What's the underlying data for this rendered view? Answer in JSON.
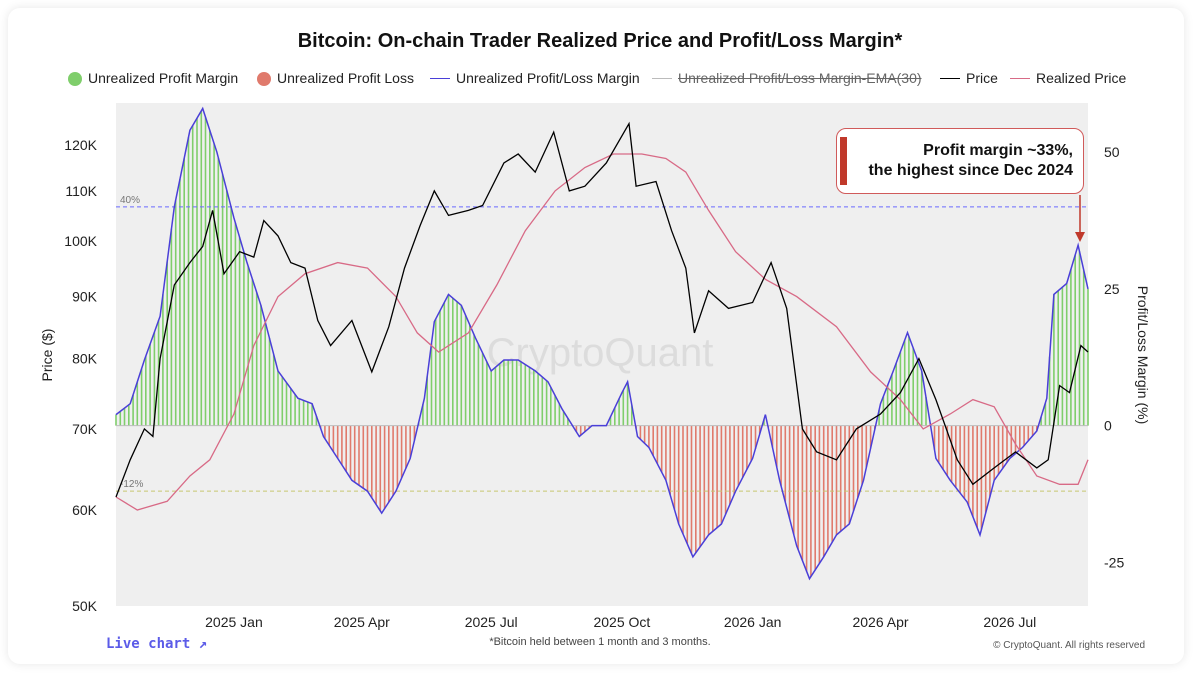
{
  "chart_data": {
    "type": "bar",
    "title": "Bitcoin: On-chain Trader Realized Price and Profit/Loss Margin*",
    "left_axis": {
      "label": "Price ($)",
      "scale": "log",
      "ticks": [
        "120K",
        "110K",
        "100K",
        "90K",
        "80K",
        "70K",
        "60K",
        "50K"
      ],
      "range": [
        50000,
        130000
      ]
    },
    "right_axis": {
      "label": "Profit/Loss Margin (%)",
      "ticks": [
        "50",
        "25",
        "0",
        "-25"
      ],
      "range": [
        -33,
        59
      ]
    },
    "x_ticks": [
      "2025 Jan",
      "2025 Apr",
      "2025 Jul",
      "2025 Oct",
      "2026 Jan",
      "2026 Apr",
      "2026 Jul"
    ],
    "x_range": [
      "2024-10-10",
      "2026-08-25"
    ],
    "reference_lines": [
      {
        "label": "40%",
        "value": 40,
        "color": "#6a6aff"
      },
      {
        "label": "-12%",
        "value": -12,
        "color": "#c8c870"
      }
    ],
    "legend": [
      {
        "label": "Unrealized Profit Margin",
        "color": "#7fce6b",
        "swatch": "dot"
      },
      {
        "label": "Unrealized Profit Loss",
        "color": "#e07a6c",
        "swatch": "dot"
      },
      {
        "label": "Unrealized Profit/Loss Margin",
        "color": "#4a3fd8",
        "swatch": "line"
      },
      {
        "label": "Unrealized Profit/Loss Margin-EMA(30)",
        "color": "#bbbbbb",
        "swatch": "line",
        "hidden": true
      },
      {
        "label": "Price",
        "color": "#000000",
        "swatch": "line"
      },
      {
        "label": "Realized Price",
        "color": "#d86a86",
        "swatch": "line"
      }
    ],
    "series": [
      {
        "name": "Unrealized Profit/Loss Margin",
        "unit": "%",
        "points": [
          [
            "2024-10-10",
            2
          ],
          [
            "2024-10-20",
            4
          ],
          [
            "2024-10-30",
            12
          ],
          [
            "2024-11-10",
            20
          ],
          [
            "2024-11-20",
            40
          ],
          [
            "2024-12-01",
            54
          ],
          [
            "2024-12-10",
            58
          ],
          [
            "2024-12-20",
            50
          ],
          [
            "2025-01-01",
            38
          ],
          [
            "2025-01-10",
            30
          ],
          [
            "2025-01-20",
            22
          ],
          [
            "2025-02-01",
            10
          ],
          [
            "2025-02-15",
            5
          ],
          [
            "2025-02-25",
            4
          ],
          [
            "2025-03-05",
            -2
          ],
          [
            "2025-03-15",
            -6
          ],
          [
            "2025-03-25",
            -10
          ],
          [
            "2025-04-05",
            -12
          ],
          [
            "2025-04-15",
            -16
          ],
          [
            "2025-04-25",
            -12
          ],
          [
            "2025-05-05",
            -6
          ],
          [
            "2025-05-15",
            5
          ],
          [
            "2025-05-22",
            19
          ],
          [
            "2025-06-01",
            24
          ],
          [
            "2025-06-10",
            22
          ],
          [
            "2025-06-20",
            16
          ],
          [
            "2025-07-01",
            10
          ],
          [
            "2025-07-10",
            12
          ],
          [
            "2025-07-20",
            12
          ],
          [
            "2025-08-01",
            10
          ],
          [
            "2025-08-10",
            8
          ],
          [
            "2025-08-20",
            3
          ],
          [
            "2025-09-01",
            -2
          ],
          [
            "2025-09-10",
            0
          ],
          [
            "2025-09-20",
            0
          ],
          [
            "2025-10-01",
            6
          ],
          [
            "2025-10-05",
            8
          ],
          [
            "2025-10-12",
            -2
          ],
          [
            "2025-10-20",
            -4
          ],
          [
            "2025-11-01",
            -10
          ],
          [
            "2025-11-10",
            -18
          ],
          [
            "2025-11-20",
            -24
          ],
          [
            "2025-12-01",
            -20
          ],
          [
            "2025-12-10",
            -18
          ],
          [
            "2025-12-20",
            -12
          ],
          [
            "2026-01-01",
            -6
          ],
          [
            "2026-01-10",
            2
          ],
          [
            "2026-01-20",
            -10
          ],
          [
            "2026-02-01",
            -22
          ],
          [
            "2026-02-10",
            -28
          ],
          [
            "2026-02-20",
            -24
          ],
          [
            "2026-03-01",
            -20
          ],
          [
            "2026-03-10",
            -18
          ],
          [
            "2026-03-20",
            -10
          ],
          [
            "2026-04-01",
            4
          ],
          [
            "2026-04-10",
            10
          ],
          [
            "2026-04-20",
            17
          ],
          [
            "2026-04-30",
            10
          ],
          [
            "2026-05-10",
            -6
          ],
          [
            "2026-05-20",
            -10
          ],
          [
            "2026-06-01",
            -14
          ],
          [
            "2026-06-10",
            -20
          ],
          [
            "2026-06-20",
            -10
          ],
          [
            "2026-07-01",
            -6
          ],
          [
            "2026-07-10",
            -4
          ],
          [
            "2026-07-20",
            -1
          ],
          [
            "2026-07-27",
            5
          ],
          [
            "2026-08-01",
            24
          ],
          [
            "2026-08-10",
            26
          ],
          [
            "2026-08-18",
            33
          ],
          [
            "2026-08-25",
            25
          ]
        ]
      },
      {
        "name": "Price",
        "unit": "USD",
        "points": [
          [
            "2024-10-10",
            61500
          ],
          [
            "2024-10-20",
            66000
          ],
          [
            "2024-10-30",
            70000
          ],
          [
            "2024-11-05",
            69000
          ],
          [
            "2024-11-10",
            80000
          ],
          [
            "2024-11-20",
            92000
          ],
          [
            "2024-12-01",
            96000
          ],
          [
            "2024-12-10",
            99000
          ],
          [
            "2024-12-17",
            106000
          ],
          [
            "2024-12-25",
            94000
          ],
          [
            "2025-01-05",
            98000
          ],
          [
            "2025-01-15",
            97000
          ],
          [
            "2025-01-22",
            104000
          ],
          [
            "2025-02-01",
            101000
          ],
          [
            "2025-02-10",
            96000
          ],
          [
            "2025-02-20",
            95000
          ],
          [
            "2025-03-01",
            86000
          ],
          [
            "2025-03-10",
            82000
          ],
          [
            "2025-03-25",
            86000
          ],
          [
            "2025-04-08",
            78000
          ],
          [
            "2025-04-20",
            85000
          ],
          [
            "2025-05-01",
            95000
          ],
          [
            "2025-05-12",
            103000
          ],
          [
            "2025-05-22",
            110000
          ],
          [
            "2025-06-01",
            105000
          ],
          [
            "2025-06-15",
            106000
          ],
          [
            "2025-06-25",
            107000
          ],
          [
            "2025-07-10",
            116000
          ],
          [
            "2025-07-20",
            118000
          ],
          [
            "2025-08-01",
            114000
          ],
          [
            "2025-08-14",
            123000
          ],
          [
            "2025-08-25",
            110000
          ],
          [
            "2025-09-05",
            111000
          ],
          [
            "2025-09-20",
            116000
          ],
          [
            "2025-10-06",
            125000
          ],
          [
            "2025-10-11",
            111000
          ],
          [
            "2025-10-25",
            112000
          ],
          [
            "2025-11-05",
            102000
          ],
          [
            "2025-11-15",
            95000
          ],
          [
            "2025-11-21",
            84000
          ],
          [
            "2025-12-01",
            91000
          ],
          [
            "2025-12-15",
            88000
          ],
          [
            "2026-01-01",
            89000
          ],
          [
            "2026-01-14",
            96000
          ],
          [
            "2026-01-25",
            88000
          ],
          [
            "2026-02-05",
            70000
          ],
          [
            "2026-02-15",
            67000
          ],
          [
            "2026-03-01",
            66000
          ],
          [
            "2026-03-15",
            70000
          ],
          [
            "2026-04-01",
            72000
          ],
          [
            "2026-04-15",
            75000
          ],
          [
            "2026-04-28",
            80000
          ],
          [
            "2026-05-10",
            74000
          ],
          [
            "2026-05-25",
            66000
          ],
          [
            "2026-06-05",
            63000
          ],
          [
            "2026-06-20",
            65000
          ],
          [
            "2026-07-05",
            67000
          ],
          [
            "2026-07-20",
            65000
          ],
          [
            "2026-07-28",
            66000
          ],
          [
            "2026-08-05",
            76000
          ],
          [
            "2026-08-12",
            75000
          ],
          [
            "2026-08-20",
            82000
          ],
          [
            "2026-08-25",
            81000
          ]
        ]
      },
      {
        "name": "Realized Price",
        "unit": "USD",
        "points": [
          [
            "2024-10-10",
            61500
          ],
          [
            "2024-10-25",
            60000
          ],
          [
            "2024-11-15",
            61000
          ],
          [
            "2024-12-01",
            64000
          ],
          [
            "2024-12-15",
            66000
          ],
          [
            "2025-01-01",
            72000
          ],
          [
            "2025-01-15",
            82000
          ],
          [
            "2025-02-01",
            90000
          ],
          [
            "2025-02-20",
            94000
          ],
          [
            "2025-03-15",
            96000
          ],
          [
            "2025-04-05",
            95000
          ],
          [
            "2025-04-25",
            90000
          ],
          [
            "2025-05-10",
            84000
          ],
          [
            "2025-05-25",
            81000
          ],
          [
            "2025-06-15",
            84000
          ],
          [
            "2025-07-05",
            92000
          ],
          [
            "2025-07-25",
            102000
          ],
          [
            "2025-08-15",
            110000
          ],
          [
            "2025-09-05",
            115000
          ],
          [
            "2025-09-25",
            118000
          ],
          [
            "2025-10-15",
            118000
          ],
          [
            "2025-11-01",
            117000
          ],
          [
            "2025-11-15",
            114000
          ],
          [
            "2025-12-01",
            106000
          ],
          [
            "2025-12-20",
            98000
          ],
          [
            "2026-01-10",
            93000
          ],
          [
            "2026-02-01",
            90000
          ],
          [
            "2026-03-01",
            85000
          ],
          [
            "2026-03-25",
            78000
          ],
          [
            "2026-04-15",
            74000
          ],
          [
            "2026-05-01",
            70000
          ],
          [
            "2026-05-20",
            72000
          ],
          [
            "2026-06-05",
            74000
          ],
          [
            "2026-06-20",
            73000
          ],
          [
            "2026-07-05",
            68000
          ],
          [
            "2026-07-20",
            64000
          ],
          [
            "2026-08-05",
            63000
          ],
          [
            "2026-08-18",
            63000
          ],
          [
            "2026-08-25",
            66000
          ]
        ]
      }
    ]
  },
  "callout": {
    "line1": "Profit margin ~33%,",
    "line2": "the highest since Dec 2024"
  },
  "watermark": "CryptoQuant",
  "footnote": "*Bitcoin held between 1 month and 3 months.",
  "copyright": "© CryptoQuant. All rights reserved",
  "live_chart_label": "Live chart ↗"
}
